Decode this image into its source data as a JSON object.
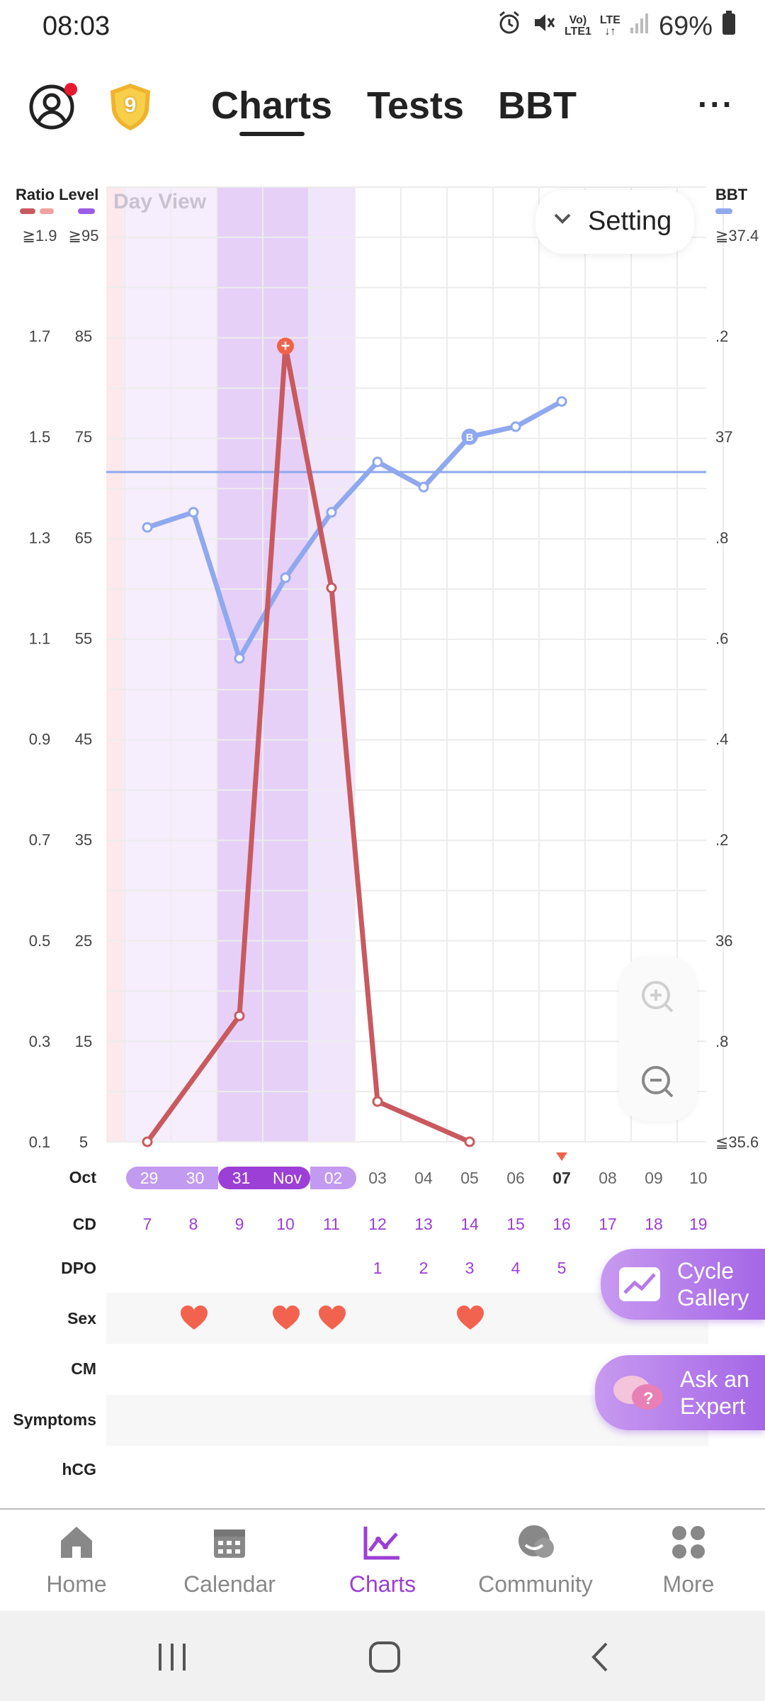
{
  "status": {
    "time": "08:03",
    "battery": "69%",
    "network_top": "Vo)",
    "network_bottom": "LTE1",
    "lte_top": "LTE",
    "lte_bottom": "↓↑"
  },
  "header": {
    "badge_level": "9",
    "tabs": [
      {
        "label": "Charts",
        "active": true
      },
      {
        "label": "Tests"
      },
      {
        "label": "BBT"
      }
    ],
    "more": "···"
  },
  "chart": {
    "left_title": "Ratio Level",
    "day_view": "Day View",
    "setting_label": "Setting",
    "right_title": "BBT",
    "ratio_ticks": [
      "≧1.9",
      "1.7",
      "1.5",
      "1.3",
      "1.1",
      "0.9",
      "0.7",
      "0.5",
      "0.3",
      "0.1"
    ],
    "level_ticks": [
      "≧95",
      "85",
      "75",
      "65",
      "55",
      "45",
      "35",
      "25",
      "15",
      "5"
    ],
    "bbt_ticks": [
      "≧37.4",
      ".2",
      "37",
      ".8",
      ".6",
      ".4",
      ".2",
      "36",
      ".8",
      "≦35.6"
    ],
    "colors": {
      "lh": "#c85a5f",
      "bbt": "#8fa8ee",
      "fertile_dark": "#e3cbf8",
      "fertile_light": "#f3e7fd",
      "period": "#fde8ec",
      "accent": "#9b3fd6"
    },
    "bbt_marker_label": "B",
    "lh_peak_symbol": "+"
  },
  "chart_data": {
    "type": "line",
    "x": [
      "Oct 29",
      "Oct 30",
      "Oct 31",
      "Nov 01",
      "Nov 02",
      "Nov 03",
      "Nov 04",
      "Nov 05",
      "Nov 06",
      "Nov 07"
    ],
    "series": [
      {
        "name": "LH ratio",
        "axis": "left",
        "values": [
          0.1,
          null,
          0.35,
          1.68,
          1.2,
          0.18,
          null,
          0.1,
          null,
          null
        ]
      },
      {
        "name": "BBT",
        "axis": "right",
        "values": [
          36.82,
          36.85,
          36.56,
          36.72,
          36.85,
          36.95,
          36.9,
          37.0,
          37.02,
          37.07
        ]
      }
    ],
    "coverline_bbt": 36.93,
    "ylim_ratio": [
      0.1,
      1.9
    ],
    "ylim_bbt": [
      35.6,
      37.4
    ]
  },
  "dates": {
    "month": "Oct",
    "days": [
      "29",
      "30",
      "31",
      "Nov",
      "02",
      "03",
      "04",
      "05",
      "06",
      "07",
      "08",
      "09",
      "10"
    ],
    "today_index": 9
  },
  "rows": {
    "cd_label": "CD",
    "cd": [
      "7",
      "8",
      "9",
      "10",
      "11",
      "12",
      "13",
      "14",
      "15",
      "16",
      "17",
      "18",
      "19"
    ],
    "dpo_label": "DPO",
    "dpo": [
      "",
      "",
      "",
      "",
      "",
      "1",
      "2",
      "3",
      "4",
      "5",
      "",
      "",
      ""
    ],
    "sex_label": "Sex",
    "sex": [
      false,
      true,
      false,
      true,
      true,
      false,
      false,
      true,
      false,
      false,
      false,
      false,
      false
    ],
    "cm_label": "CM",
    "symptoms_label": "Symptoms",
    "hcg_label": "hCG"
  },
  "floating": {
    "cycle_gallery": [
      "Cycle",
      "Gallery"
    ],
    "ask_expert": [
      "Ask an",
      "Expert"
    ]
  },
  "nav": {
    "items": [
      {
        "label": "Home",
        "icon": "home-icon"
      },
      {
        "label": "Calendar",
        "icon": "calendar-icon"
      },
      {
        "label": "Charts",
        "icon": "charts-icon",
        "active": true
      },
      {
        "label": "Community",
        "icon": "community-icon"
      },
      {
        "label": "More",
        "icon": "more-icon"
      }
    ]
  }
}
